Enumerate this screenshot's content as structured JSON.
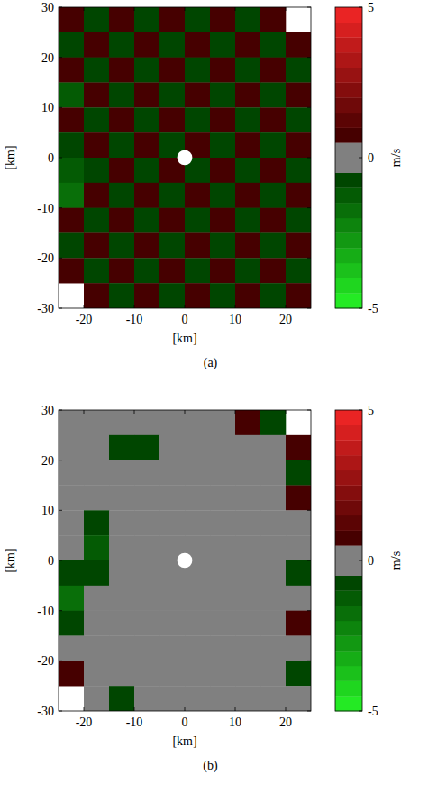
{
  "chart_data": [
    {
      "type": "heatmap",
      "title": "(a)",
      "x_label": "[km]",
      "y_label": "[km]",
      "xlim": [
        -25,
        25
      ],
      "ylim": [
        -30,
        30
      ],
      "xticks": [
        -20,
        -10,
        0,
        10,
        20
      ],
      "yticks": [
        -30,
        -20,
        -10,
        0,
        10,
        20,
        30
      ],
      "x": [
        -22.5,
        -17.5,
        -12.5,
        -7.5,
        -2.5,
        2.5,
        7.5,
        12.5,
        17.5,
        22.5
      ],
      "y": [
        27.5,
        22.5,
        17.5,
        12.5,
        7.5,
        2.5,
        -2.5,
        -7.5,
        -12.5,
        -17.5,
        -22.5,
        -27.5
      ],
      "no_data_radius": 1.5,
      "values": [
        [
          0.6,
          -0.7,
          0.8,
          -0.6,
          0.7,
          -0.8,
          0.6,
          -0.7,
          0.6,
          null
        ],
        [
          -0.8,
          0.7,
          -0.6,
          0.8,
          -0.7,
          0.6,
          -0.8,
          0.7,
          -0.6,
          0.7
        ],
        [
          0.7,
          -0.6,
          0.7,
          -0.8,
          0.6,
          -0.7,
          0.8,
          -0.6,
          0.7,
          -0.8
        ],
        [
          -1.2,
          0.8,
          -0.7,
          0.6,
          -0.8,
          0.7,
          -0.6,
          0.8,
          -0.7,
          0.6
        ],
        [
          0.6,
          -0.9,
          0.6,
          -0.7,
          0.8,
          -0.6,
          0.7,
          -0.8,
          0.6,
          -0.7
        ],
        [
          -0.9,
          0.7,
          -0.8,
          0.6,
          -0.7,
          0.8,
          -0.6,
          0.7,
          -0.8,
          0.6
        ],
        [
          -1.4,
          -0.6,
          0.7,
          -0.8,
          0.6,
          -0.7,
          0.8,
          -0.6,
          0.7,
          -0.7
        ],
        [
          -1.6,
          0.6,
          -0.7,
          0.8,
          -0.6,
          0.7,
          -0.8,
          0.7,
          -0.6,
          0.8
        ],
        [
          0.7,
          -0.8,
          0.6,
          -0.7,
          0.8,
          -0.6,
          0.7,
          -0.8,
          0.6,
          -0.7
        ],
        [
          -0.6,
          0.7,
          -0.8,
          0.6,
          -0.7,
          0.8,
          -0.6,
          0.7,
          -0.8,
          0.6
        ],
        [
          0.8,
          -0.6,
          0.7,
          -0.8,
          0.6,
          -0.7,
          0.8,
          -0.6,
          0.7,
          -0.6
        ],
        [
          null,
          0.7,
          -0.6,
          0.8,
          -0.7,
          0.6,
          -0.8,
          0.7,
          -0.6,
          0.7
        ]
      ],
      "colorbar": {
        "label": "m/s",
        "range": [
          -5,
          5
        ],
        "ticks": [
          -5,
          0,
          5
        ]
      }
    },
    {
      "type": "heatmap",
      "title": "(b)",
      "x_label": "[km]",
      "y_label": "[km]",
      "xlim": [
        -25,
        25
      ],
      "ylim": [
        -30,
        30
      ],
      "xticks": [
        -20,
        -10,
        0,
        10,
        20
      ],
      "yticks": [
        -30,
        -20,
        -10,
        0,
        10,
        20,
        30
      ],
      "x": [
        -22.5,
        -17.5,
        -12.5,
        -7.5,
        -2.5,
        2.5,
        7.5,
        12.5,
        17.5,
        22.5
      ],
      "y": [
        27.5,
        22.5,
        17.5,
        12.5,
        7.5,
        2.5,
        -2.5,
        -7.5,
        -12.5,
        -17.5,
        -22.5,
        -27.5
      ],
      "no_data_radius": 1.5,
      "values": [
        [
          0,
          0,
          0,
          0,
          0,
          0,
          0,
          0.6,
          -0.6,
          null
        ],
        [
          0,
          0,
          -0.6,
          -0.9,
          0,
          0,
          0,
          0,
          0,
          0.6
        ],
        [
          0,
          0,
          0,
          0,
          0,
          0,
          0,
          0,
          0,
          -0.6
        ],
        [
          0,
          0,
          0,
          0,
          0,
          0,
          0,
          0,
          0,
          0.6
        ],
        [
          0,
          -0.7,
          0,
          0,
          0,
          0,
          0,
          0,
          0,
          0
        ],
        [
          0,
          -1.2,
          0,
          0,
          0,
          0,
          0,
          0,
          0,
          0
        ],
        [
          -0.6,
          -0.8,
          0,
          0,
          0,
          0,
          0,
          0,
          0,
          -0.6
        ],
        [
          -1.5,
          0,
          0,
          0,
          0,
          0,
          0,
          0,
          0,
          0
        ],
        [
          -0.7,
          0,
          0,
          0,
          0,
          0,
          0,
          0,
          0,
          0.6
        ],
        [
          0,
          0,
          0,
          0,
          0,
          0,
          0,
          0,
          0,
          0
        ],
        [
          0.6,
          0,
          0,
          0,
          0,
          0,
          0,
          0,
          0,
          -0.6
        ],
        [
          null,
          0,
          -0.6,
          0,
          0,
          0,
          0,
          0,
          0,
          0
        ]
      ],
      "colorbar": {
        "label": "m/s",
        "range": [
          -5,
          5
        ],
        "ticks": [
          -5,
          0,
          5
        ]
      }
    }
  ]
}
